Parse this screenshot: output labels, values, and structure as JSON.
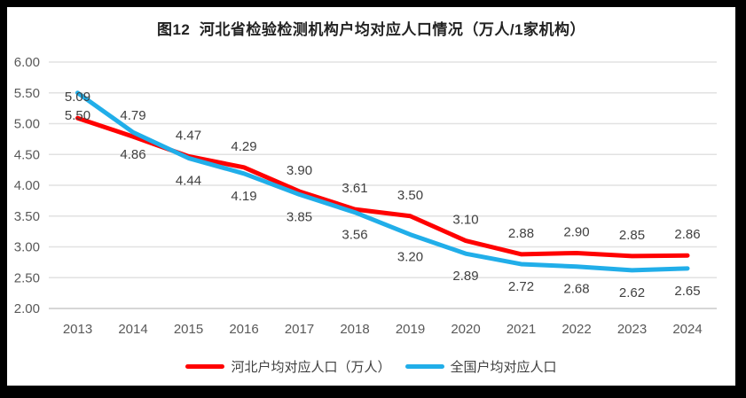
{
  "frame": {
    "border_color": "#000000",
    "background": "#ffffff"
  },
  "chart_data": {
    "type": "line",
    "title": "图12  河北省检验检测机构户均对应人口情况（万人/1家机构）",
    "categories": [
      "2013",
      "2014",
      "2015",
      "2016",
      "2017",
      "2018",
      "2019",
      "2020",
      "2021",
      "2022",
      "2023",
      "2024"
    ],
    "series": [
      {
        "name": "河北户均对应人口（万人）",
        "color": "#ff0000",
        "label_position": "above",
        "values": [
          5.09,
          4.79,
          4.47,
          4.29,
          3.9,
          3.61,
          3.5,
          3.1,
          2.88,
          2.9,
          2.85,
          2.86
        ]
      },
      {
        "name": "全国户均对应人口",
        "color": "#21aee9",
        "label_position": "below",
        "values": [
          5.5,
          4.86,
          4.44,
          4.19,
          3.85,
          3.56,
          3.2,
          2.89,
          2.72,
          2.68,
          2.62,
          2.65
        ]
      }
    ],
    "y_axis": {
      "min": 2.0,
      "max": 6.0,
      "step": 0.5,
      "tick_labels": [
        "6.00",
        "5.50",
        "5.00",
        "4.50",
        "4.00",
        "3.50",
        "3.00",
        "2.50",
        "2.00"
      ]
    },
    "x_axis": {
      "label_color": "#595959"
    },
    "grid": true,
    "gridline_color": "#e2e2e2",
    "baseline_color": "#c9c9c9",
    "data_label_color": "#404040",
    "value_decimals": 2,
    "legend_position": "bottom"
  }
}
